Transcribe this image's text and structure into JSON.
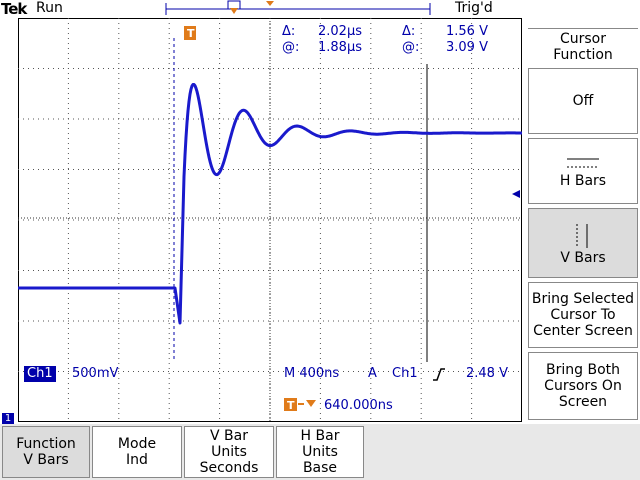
{
  "header": {
    "brand": "Tek",
    "status": "Run",
    "trigger_status": "Trig'd"
  },
  "readouts": {
    "delta_symbol_1": "Δ:",
    "delta_time": "2.02μs",
    "delta_symbol_2": "Δ:",
    "delta_volts": "1.56 V",
    "at_symbol_1": "@:",
    "at_time": "1.88μs",
    "at_symbol_2": "@:",
    "at_volts": "3.09 V",
    "channel": "Ch1",
    "volts_per_div": "500mV",
    "timebase": "M 400ns",
    "trigger_mode": "A",
    "trigger_source": "Ch1",
    "trigger_level": "2.48 V",
    "trigger_position": "640.000ns",
    "trigger_marker_label": "T",
    "channel_marker": "1"
  },
  "side_menu": {
    "title": "Cursor Function",
    "items": [
      {
        "label": "Off"
      },
      {
        "label": "H Bars"
      },
      {
        "label": "V Bars"
      },
      {
        "label": "Bring Selected Cursor To Center Screen"
      },
      {
        "label": "Bring Both Cursors On Screen"
      }
    ]
  },
  "bottom_menu": {
    "items": [
      {
        "line1": "Function",
        "line2": "V Bars"
      },
      {
        "line1": "Mode",
        "line2": "Ind"
      },
      {
        "line1": "V Bar",
        "line2": "Units",
        "line3": "Seconds"
      },
      {
        "line1": "H Bar",
        "line2": "Units",
        "line3": "Base"
      }
    ]
  },
  "colors": {
    "trace": "#1a1acc",
    "accent": "#e07b1a",
    "readout": "#0000aa"
  }
}
